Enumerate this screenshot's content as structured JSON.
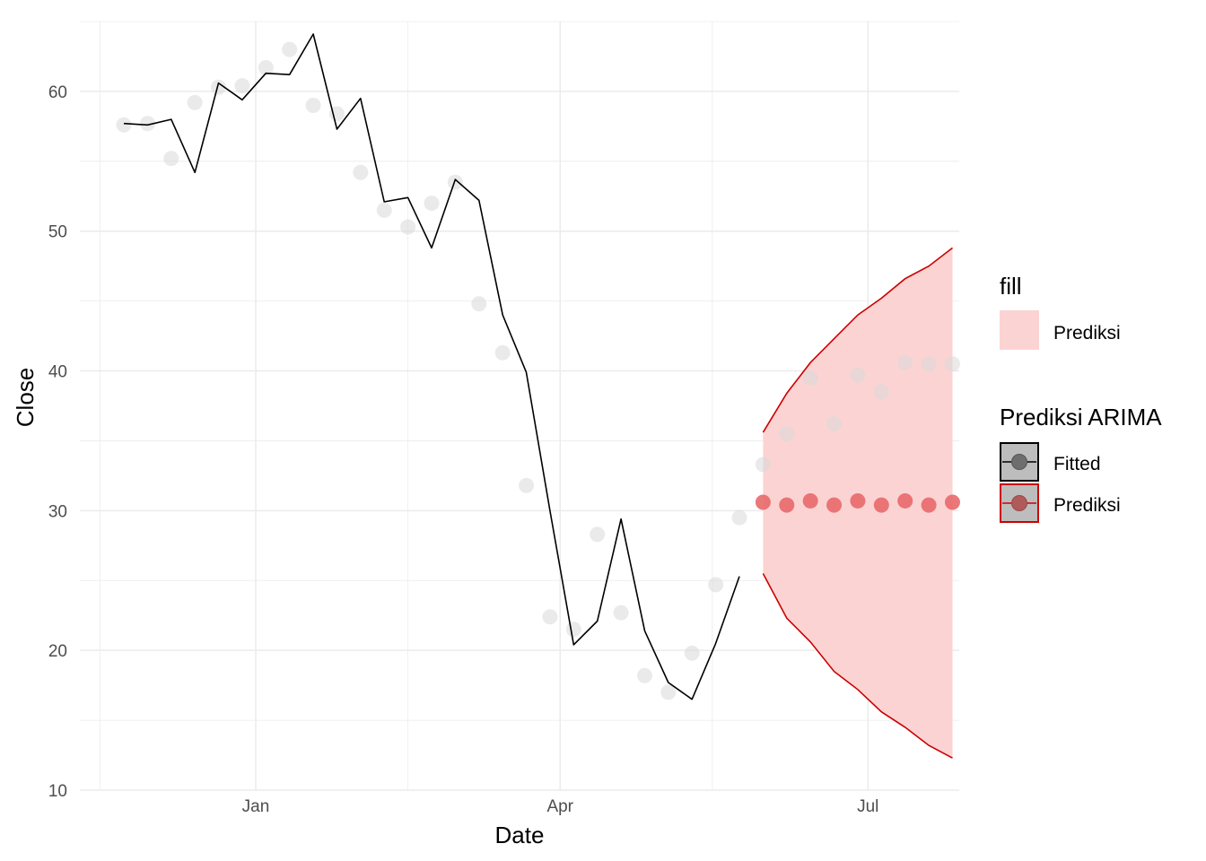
{
  "chart_data": {
    "type": "line",
    "xlabel": "Date",
    "ylabel": "Close",
    "ylim": [
      10,
      65
    ],
    "xlim": [
      "2020-11-10",
      "2021-07-28"
    ],
    "y_ticks": [
      10,
      20,
      30,
      40,
      50,
      60
    ],
    "x_ticks": [
      {
        "date": "2021-01-01",
        "label": "Jan"
      },
      {
        "date": "2021-04-01",
        "label": "Apr"
      },
      {
        "date": "2021-07-01",
        "label": "Jul"
      }
    ],
    "x_minor_ticks": [
      "2020-11-16",
      "2021-02-15",
      "2021-05-16"
    ],
    "grid": true,
    "legend_position": "right",
    "colors": {
      "fitted_line": "#000000",
      "forecast_line": "#cc0000",
      "forecast_band": "#fcd3d3",
      "actual_points": "#d9d9d9",
      "forecast_points": "#e8696a",
      "grid": "#ebebeb"
    },
    "actual": {
      "x": [
        "2020-11-23",
        "2020-11-30",
        "2020-12-07",
        "2020-12-14",
        "2020-12-21",
        "2020-12-28",
        "2021-01-04",
        "2021-01-11",
        "2021-01-18",
        "2021-01-25",
        "2021-02-01",
        "2021-02-08",
        "2021-02-15",
        "2021-02-22",
        "2021-03-01",
        "2021-03-08",
        "2021-03-15",
        "2021-03-22",
        "2021-03-29",
        "2021-04-05",
        "2021-04-12",
        "2021-04-19",
        "2021-04-26",
        "2021-05-03",
        "2021-05-10",
        "2021-05-17",
        "2021-05-24",
        "2021-05-31",
        "2021-06-07",
        "2021-06-14",
        "2021-06-21",
        "2021-06-28",
        "2021-07-05",
        "2021-07-12"
      ],
      "y": [
        57.6,
        57.7,
        55.2,
        59.2,
        60.3,
        60.4,
        61.7,
        63.0,
        59.0,
        58.4,
        54.2,
        51.5,
        50.3,
        52.0,
        53.5,
        44.8,
        41.3,
        31.8,
        22.4,
        21.5,
        28.3,
        22.7,
        18.2,
        17.0,
        19.8,
        24.7,
        29.5,
        33.3,
        35.5,
        39.5,
        36.2,
        39.7,
        38.5,
        40.6
      ]
    },
    "actual_tail": {
      "x": [
        "2021-07-19",
        "2021-07-26"
      ],
      "y": [
        40.5,
        40.5
      ]
    },
    "series": [
      {
        "name": "Fitted",
        "x": [
          "2020-11-23",
          "2020-11-30",
          "2020-12-07",
          "2020-12-14",
          "2020-12-21",
          "2020-12-28",
          "2021-01-04",
          "2021-01-11",
          "2021-01-18",
          "2021-01-25",
          "2021-02-01",
          "2021-02-08",
          "2021-02-15",
          "2021-02-22",
          "2021-03-01",
          "2021-03-08",
          "2021-03-15",
          "2021-03-22",
          "2021-03-29",
          "2021-04-05",
          "2021-04-12",
          "2021-04-19",
          "2021-04-26",
          "2021-05-03",
          "2021-05-10",
          "2021-05-17",
          "2021-05-24"
        ],
        "y": [
          57.7,
          57.6,
          58.0,
          54.2,
          60.6,
          59.4,
          61.3,
          61.2,
          64.1,
          57.3,
          59.5,
          52.1,
          52.4,
          48.8,
          53.7,
          52.2,
          44.0,
          39.9,
          30.0,
          20.4,
          22.1,
          29.4,
          21.4,
          17.7,
          16.5,
          20.5,
          25.3
        ]
      },
      {
        "name": "Prediksi",
        "x": [
          "2021-05-31",
          "2021-06-07",
          "2021-06-14",
          "2021-06-21",
          "2021-06-28",
          "2021-07-05",
          "2021-07-12",
          "2021-07-19",
          "2021-07-26"
        ],
        "y": [
          30.6,
          30.4,
          30.7,
          30.4,
          30.7,
          30.4,
          30.7,
          30.4,
          30.6
        ],
        "upper": [
          35.6,
          38.4,
          40.6,
          42.3,
          44.0,
          45.2,
          46.6,
          47.5,
          48.8
        ],
        "lower": [
          25.5,
          22.3,
          20.6,
          18.5,
          17.2,
          15.6,
          14.5,
          13.2,
          12.3
        ]
      }
    ],
    "legends": [
      {
        "title": "fill",
        "items": [
          {
            "label": "Prediksi"
          }
        ]
      },
      {
        "title": "Prediksi ARIMA",
        "items": [
          {
            "label": "Fitted"
          },
          {
            "label": "Prediksi"
          }
        ]
      }
    ]
  }
}
